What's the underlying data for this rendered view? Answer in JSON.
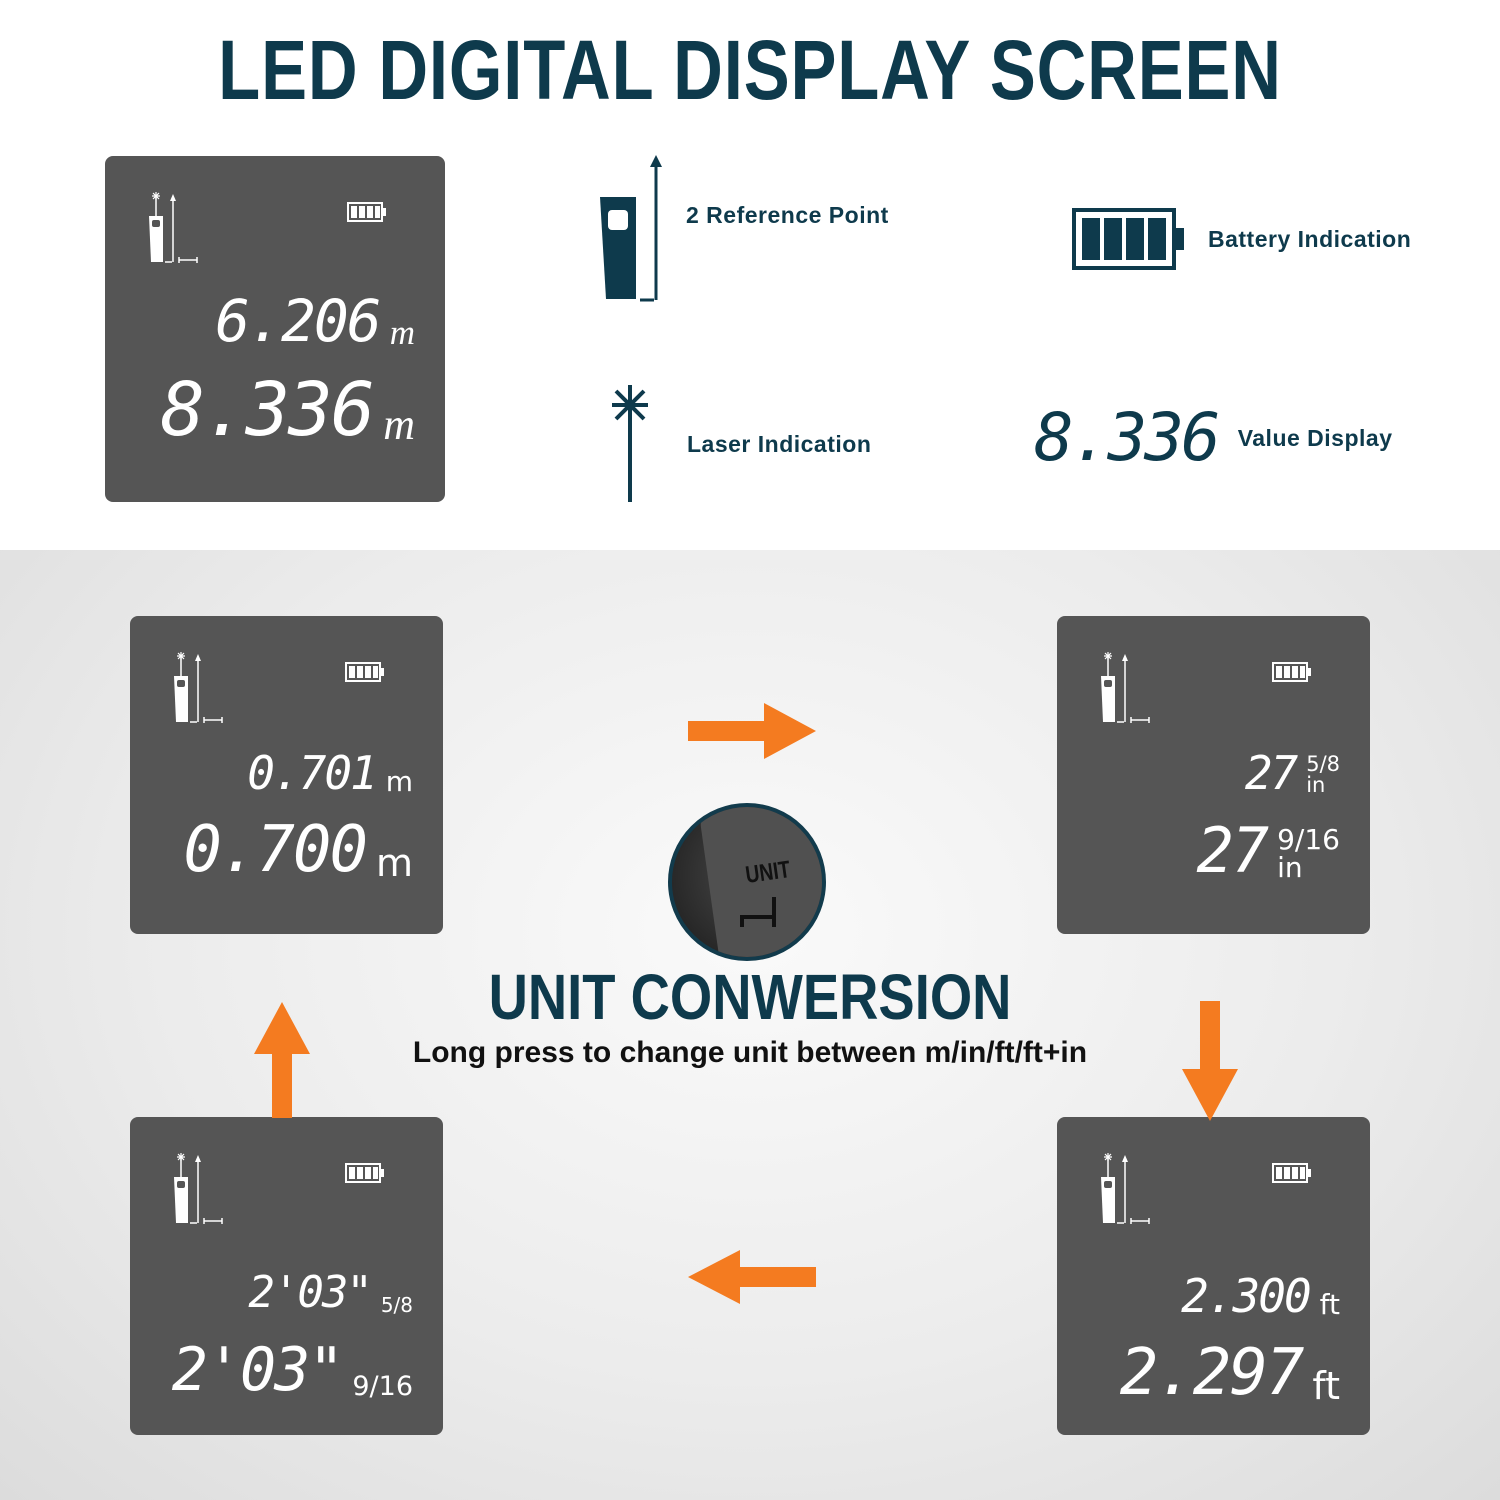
{
  "header": {
    "title": "LED DIGITAL DISPLAY SCREEN"
  },
  "legend": {
    "reference": "2 Reference Point",
    "battery": "Battery Indication",
    "laser": "Laser Indication",
    "value": "Value Display",
    "value_sample": "8.336"
  },
  "screens": {
    "main": {
      "line1": {
        "value": "6.206",
        "unit": "m"
      },
      "line2": {
        "value": "8.336",
        "unit": "m"
      }
    },
    "meters": {
      "line1": {
        "value": "0.701",
        "unit": "m"
      },
      "line2": {
        "value": "0.700",
        "unit": "m"
      }
    },
    "inches": {
      "line1": {
        "value": "27",
        "fraction": "5/8",
        "unit": "in"
      },
      "line2": {
        "value": "27",
        "fraction": "9/16",
        "unit": "in"
      }
    },
    "feet": {
      "line1": {
        "value": "2.300",
        "unit": "ft"
      },
      "line2": {
        "value": "2.297",
        "unit": "ft"
      }
    },
    "feet_inches": {
      "line1": {
        "value": "2'03\"",
        "fraction": "5/8"
      },
      "line2": {
        "value": "2'03\"",
        "fraction": "9/16"
      }
    }
  },
  "unit_button": {
    "label": "UNIT"
  },
  "conversion": {
    "title": "UNIT CONWERSION",
    "subtitle": "Long press to change unit between m/in/ft/ft+in"
  },
  "colors": {
    "accent": "#f47b20",
    "title": "#0e3a4c",
    "screen": "#555555"
  }
}
